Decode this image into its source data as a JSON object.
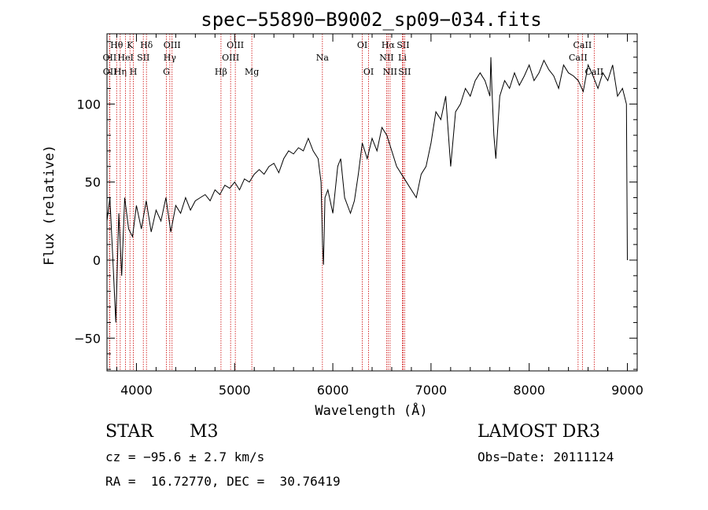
{
  "chart_data": {
    "type": "line",
    "title": "spec−55890−B9002_sp09−034.fits",
    "xlabel": "Wavelength (Å)",
    "ylabel": "Flux (relative)",
    "xlim": [
      3700,
      9100
    ],
    "ylim": [
      -71,
      145
    ],
    "xticks": [
      4000,
      5000,
      6000,
      7000,
      8000,
      9000
    ],
    "yticks": [
      -50,
      0,
      50,
      100
    ],
    "ytick_labels": [
      "−50",
      "0",
      "50",
      "100"
    ],
    "grid": false,
    "series": [
      {
        "x": [
          3700,
          3730,
          3760,
          3790,
          3820,
          3850,
          3880,
          3920,
          3960,
          4000,
          4050,
          4100,
          4150,
          4200,
          4250,
          4300,
          4350,
          4400,
          4450,
          4500,
          4550,
          4600,
          4650,
          4700,
          4750,
          4800,
          4850,
          4900,
          4950,
          5000,
          5050,
          5100,
          5150,
          5200,
          5250,
          5300,
          5350,
          5400,
          5450,
          5500,
          5550,
          5600,
          5650,
          5700,
          5750,
          5800,
          5850,
          5880,
          5895,
          5905,
          5920,
          5950,
          6000,
          6050,
          6080,
          6120,
          6150,
          6180,
          6220,
          6260,
          6300,
          6350,
          6400,
          6450,
          6500,
          6550,
          6600,
          6650,
          6700,
          6750,
          6800,
          6850,
          6900,
          6950,
          7000,
          7050,
          7100,
          7150,
          7200,
          7250,
          7300,
          7350,
          7400,
          7450,
          7500,
          7550,
          7600,
          7610,
          7620,
          7640,
          7660,
          7700,
          7750,
          7800,
          7850,
          7900,
          7950,
          8000,
          8050,
          8100,
          8150,
          8200,
          8250,
          8300,
          8350,
          8400,
          8450,
          8500,
          8550,
          8600,
          8650,
          8700,
          8750,
          8800,
          8850,
          8900,
          8950,
          8990,
          8995,
          9000
        ],
        "y": [
          25,
          40,
          0,
          -40,
          30,
          -10,
          40,
          20,
          15,
          35,
          20,
          38,
          18,
          32,
          25,
          40,
          18,
          35,
          30,
          40,
          32,
          38,
          40,
          42,
          38,
          45,
          42,
          48,
          46,
          50,
          45,
          52,
          50,
          55,
          58,
          55,
          60,
          62,
          56,
          65,
          70,
          68,
          72,
          70,
          78,
          70,
          65,
          50,
          10,
          -3,
          40,
          45,
          30,
          60,
          65,
          40,
          35,
          30,
          38,
          55,
          75,
          65,
          78,
          70,
          85,
          80,
          70,
          60,
          55,
          50,
          45,
          40,
          55,
          60,
          75,
          95,
          90,
          105,
          60,
          95,
          100,
          110,
          105,
          115,
          120,
          115,
          105,
          130,
          110,
          80,
          65,
          105,
          115,
          110,
          120,
          112,
          118,
          125,
          115,
          120,
          128,
          122,
          118,
          110,
          125,
          120,
          118,
          115,
          108,
          125,
          118,
          110,
          120,
          115,
          125,
          105,
          110,
          100,
          50,
          0
        ]
      }
    ],
    "lines": [
      {
        "label": "OII",
        "wl": 3727,
        "row": 2
      },
      {
        "label": "OII",
        "wl": 3729,
        "row": 3
      },
      {
        "label": "Hθ",
        "wl": 3798,
        "row": 1
      },
      {
        "label": "Hη",
        "wl": 3835,
        "row": 3
      },
      {
        "label": "HeI",
        "wl": 3889,
        "row": 2
      },
      {
        "label": "K",
        "wl": 3934,
        "row": 1
      },
      {
        "label": "H",
        "wl": 3969,
        "row": 3
      },
      {
        "label": "SII",
        "wl": 4070,
        "row": 2
      },
      {
        "label": "Hδ",
        "wl": 4102,
        "row": 1
      },
      {
        "label": "G",
        "wl": 4305,
        "row": 3
      },
      {
        "label": "Hγ",
        "wl": 4340,
        "row": 2
      },
      {
        "label": "OIII",
        "wl": 4363,
        "row": 1
      },
      {
        "label": "Hβ",
        "wl": 4861,
        "row": 3
      },
      {
        "label": "OIII",
        "wl": 4959,
        "row": 2
      },
      {
        "label": "OIII",
        "wl": 5007,
        "row": 1
      },
      {
        "label": "Mg",
        "wl": 5175,
        "row": 3
      },
      {
        "label": "Na",
        "wl": 5894,
        "row": 2
      },
      {
        "label": "OI",
        "wl": 6300,
        "row": 1
      },
      {
        "label": "OI",
        "wl": 6364,
        "row": 3
      },
      {
        "label": "NII",
        "wl": 6548,
        "row": 2
      },
      {
        "label": "Hα",
        "wl": 6563,
        "row": 1
      },
      {
        "label": "NII",
        "wl": 6583,
        "row": 3
      },
      {
        "label": "Li",
        "wl": 6708,
        "row": 2
      },
      {
        "label": "SII",
        "wl": 6716,
        "row": 1
      },
      {
        "label": "SII",
        "wl": 6731,
        "row": 3
      },
      {
        "label": "CaII",
        "wl": 8498,
        "row": 2
      },
      {
        "label": "CaII",
        "wl": 8542,
        "row": 1
      },
      {
        "label": "CaII",
        "wl": 8662,
        "row": 3
      }
    ]
  },
  "info": {
    "class_label": "STAR",
    "subclass": "M3",
    "survey": "LAMOST DR3",
    "cz": "cz = −95.6 ± 2.7 km/s",
    "obs_date": "Obs−Date: 20111124",
    "coords": "RA =  16.72770, DEC =  30.76419"
  },
  "colors": {
    "line_marker": "#cc0000",
    "spectrum": "#000000"
  }
}
